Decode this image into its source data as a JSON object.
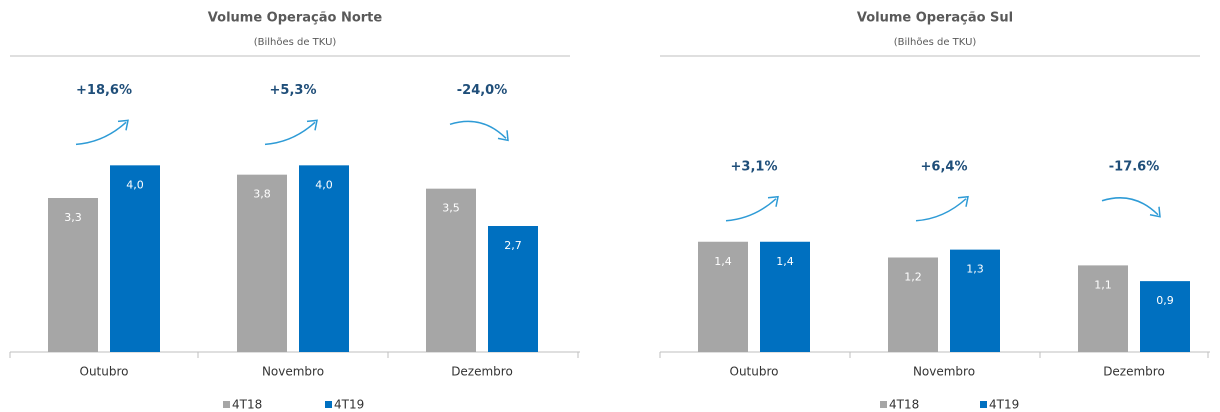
{
  "chart_data": [
    {
      "type": "bar",
      "title": "Volume Operação Norte",
      "subtitle": "(Bilhões de TKU)",
      "categories": [
        "Outubro",
        "Novembro",
        "Dezembro"
      ],
      "series": [
        {
          "name": "4T18",
          "color": "#a6a6a6",
          "values": [
            3.3,
            3.8,
            3.5
          ],
          "value_labels": [
            "3,3",
            "3,8",
            "3,5"
          ]
        },
        {
          "name": "4T19",
          "color": "#0070c0",
          "values": [
            4.0,
            4.0,
            2.7
          ],
          "value_labels": [
            "4,0",
            "4,0",
            "2,7"
          ]
        }
      ],
      "annotations": [
        "+18,6%",
        "+5,3%",
        "-24,0%"
      ],
      "ylim": [
        0,
        5.4
      ]
    },
    {
      "type": "bar",
      "title": "Volume Operação Sul",
      "subtitle": "(Bilhões de TKU)",
      "categories": [
        "Outubro",
        "Novembro",
        "Dezembro"
      ],
      "series": [
        {
          "name": "4T18",
          "color": "#a6a6a6",
          "values": [
            1.4,
            1.2,
            1.1
          ],
          "value_labels": [
            "1,4",
            "1,2",
            "1,1"
          ]
        },
        {
          "name": "4T19",
          "color": "#0070c0",
          "values": [
            1.4,
            1.3,
            0.9
          ],
          "value_labels": [
            "1,4",
            "1,3",
            "0,9"
          ]
        }
      ],
      "annotations": [
        "+3,1%",
        "+6,4%",
        "-17.6%"
      ],
      "ylim": [
        0,
        3.2
      ]
    }
  ]
}
